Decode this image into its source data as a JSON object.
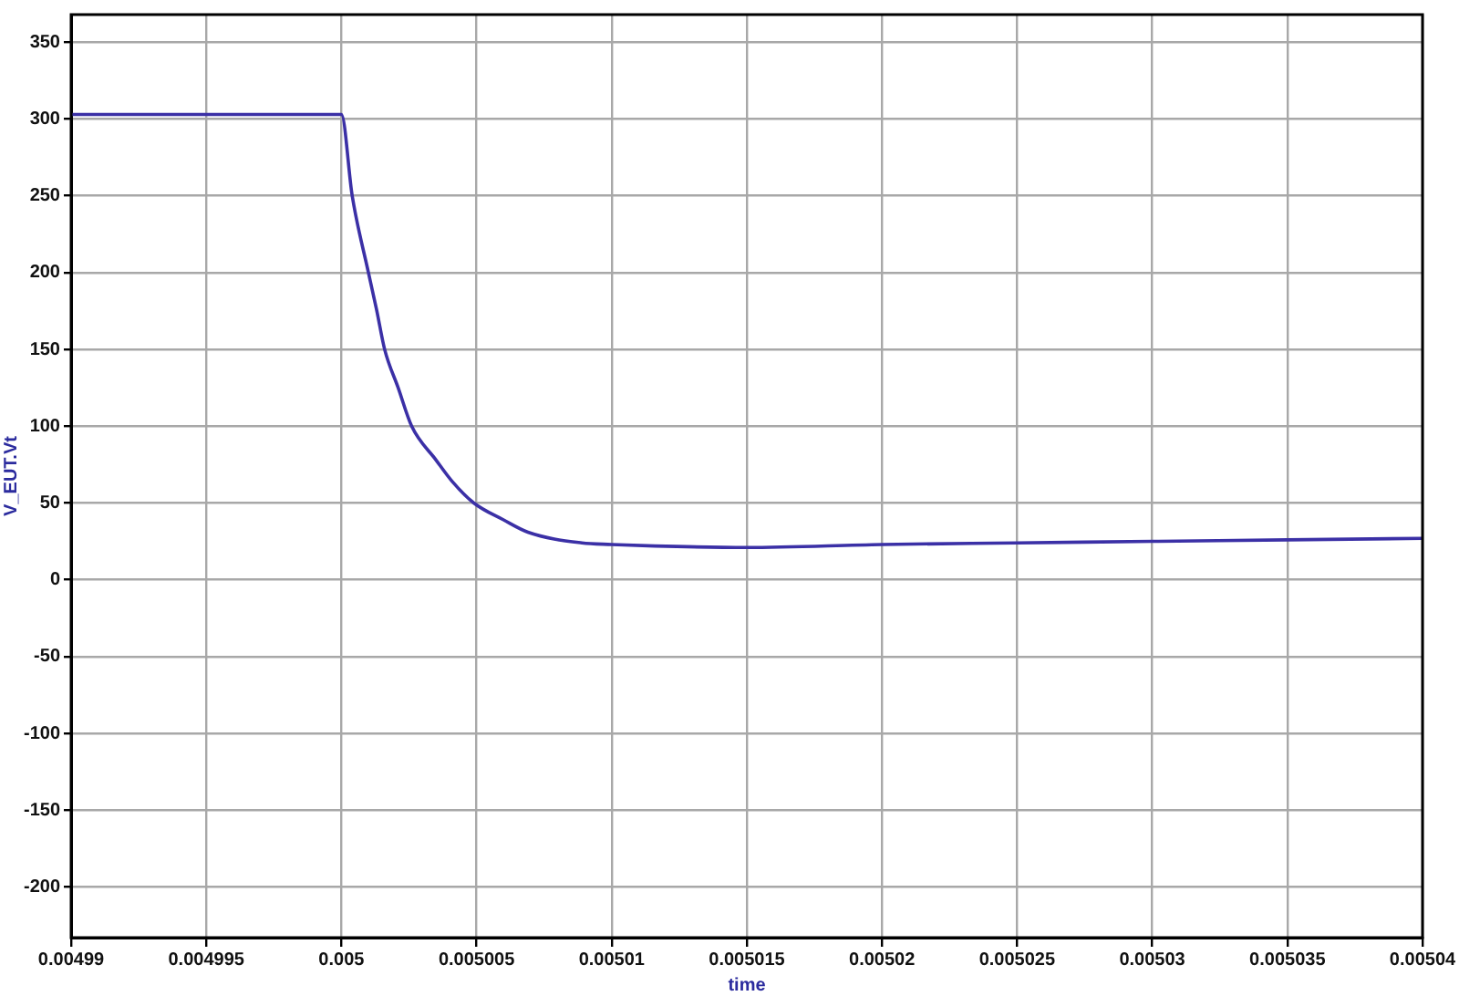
{
  "chart_data": {
    "type": "line",
    "xlabel": "time",
    "ylabel": "V_EUT.Vt",
    "x": [
      0.00499,
      0.005,
      0.0050004,
      0.005001,
      0.0050013,
      0.0050016,
      0.0050021,
      0.0050026,
      0.0050035,
      0.0050041,
      0.0050049,
      0.005006,
      0.0050069,
      0.0050089,
      0.00501,
      0.0050116,
      0.005015,
      0.00502,
      0.005025,
      0.00503,
      0.005035,
      0.00504
    ],
    "series": [
      {
        "color": "#3b30a6",
        "values": [
          303,
          303,
          250,
          200,
          176,
          150,
          125,
          100,
          78,
          64,
          50,
          39,
          31,
          24,
          23,
          22,
          21,
          23,
          24,
          25,
          26,
          27
        ]
      }
    ],
    "xlim": [
      0.00499,
      0.00504
    ],
    "ylim": [
      -233,
      368
    ],
    "xticks": [
      0.00499,
      0.004995,
      0.005,
      0.005005,
      0.00501,
      0.005015,
      0.00502,
      0.005025,
      0.00503,
      0.005035,
      0.00504
    ],
    "yticks": [
      -200,
      -150,
      -100,
      -50,
      0,
      50,
      100,
      150,
      200,
      250,
      300,
      350
    ],
    "grid": true
  }
}
